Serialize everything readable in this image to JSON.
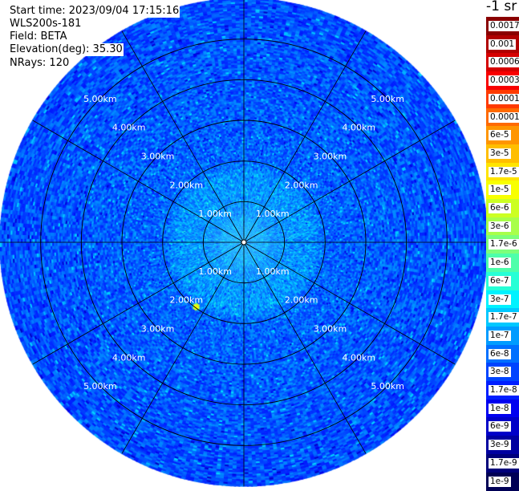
{
  "info": {
    "start_time": "Start time: 2023/09/04 17:15:16",
    "device": "WLS200s-181",
    "field": "Field: BETA",
    "elevation": "Elevation(deg): 35.30",
    "nrays": "NRays: 120"
  },
  "colorbar": {
    "title": "-1 sr",
    "labels": [
      "0.0017",
      "0.001",
      "0.0006",
      "0.0003",
      "0.00017",
      "0.0001",
      "6e-5",
      "3e-5",
      "1.7e-5",
      "1e-5",
      "6e-6",
      "3e-6",
      "1.7e-6",
      "1e-6",
      "6e-7",
      "3e-7",
      "1.7e-7",
      "1e-7",
      "6e-8",
      "3e-8",
      "1.7e-8",
      "1e-8",
      "6e-9",
      "3e-9",
      "1.7e-9",
      "1e-9"
    ],
    "colors": [
      "#8a0000",
      "#b00000",
      "#d50000",
      "#f80000",
      "#ff3a00",
      "#ff6a00",
      "#ff9500",
      "#ffbe00",
      "#ffe400",
      "#f8ff00",
      "#ccff22",
      "#a8ff4a",
      "#7dff7a",
      "#4dffaa",
      "#26ffd6",
      "#00f2ff",
      "#00c8ff",
      "#009cff",
      "#0070ff",
      "#0044ff",
      "#001eff",
      "#0000f0",
      "#0000c8",
      "#0000a0",
      "#00007a",
      "#000055"
    ]
  },
  "chart_data": {
    "type": "heatmap",
    "projection": "polar (plan position indicator)",
    "field": "BETA",
    "elevation_deg": 35.3,
    "n_rays": 120,
    "range_rings_km": [
      1.0,
      2.0,
      3.0,
      4.0,
      5.0
    ],
    "ring_label_text": [
      "1.00km",
      "2.00km",
      "3.00km",
      "4.00km",
      "5.00km"
    ],
    "max_range_km": 6.0,
    "azimuth_spokes_deg": [
      0,
      30,
      60,
      90,
      120,
      150,
      180,
      210,
      240,
      270,
      300,
      330
    ],
    "color_scale": "log",
    "color_range": [
      1e-09,
      0.0017
    ],
    "background_beta_far": 3e-08,
    "background_beta_near": 1e-07,
    "feature": {
      "azimuth_deg": 216,
      "range_km": 1.95,
      "beta": 3e-05
    }
  }
}
